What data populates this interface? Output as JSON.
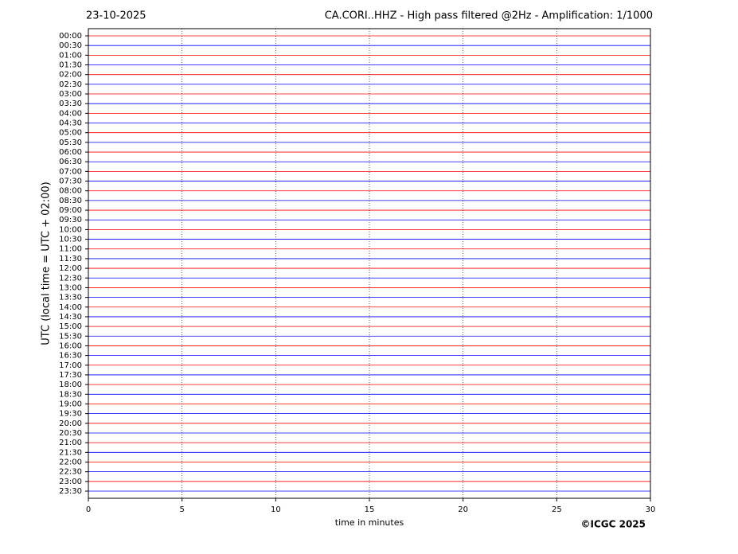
{
  "chart_data": {
    "type": "helicorder",
    "date": "23-10-2025",
    "title": "CA.CORI..HHZ - High pass filtered @2Hz - Amplification: 1/1000",
    "y_label": "UTC (local time = UTC + 02:00)",
    "x_label": "time in minutes",
    "copyright": "©ICGC 2025",
    "categories": [
      "00:00",
      "00:30",
      "01:00",
      "01:30",
      "02:00",
      "02:30",
      "03:00",
      "03:30",
      "04:00",
      "04:30",
      "05:00",
      "05:30",
      "06:00",
      "06:30",
      "07:00",
      "07:30",
      "08:00",
      "08:30",
      "09:00",
      "09:30",
      "10:00",
      "10:30",
      "11:00",
      "11:30",
      "12:00",
      "12:30",
      "13:00",
      "13:30",
      "14:00",
      "14:30",
      "15:00",
      "15:30",
      "16:00",
      "16:30",
      "17:00",
      "17:30",
      "18:00",
      "18:30",
      "19:00",
      "19:30",
      "20:00",
      "20:30",
      "21:00",
      "21:30",
      "22:00",
      "22:30",
      "23:00",
      "23:30"
    ],
    "trace_colors": [
      "#ff0000",
      "#0000ff"
    ],
    "xlim": [
      0,
      30
    ],
    "xticks": [
      0,
      5,
      10,
      15,
      20,
      25,
      30
    ],
    "grid": true
  }
}
